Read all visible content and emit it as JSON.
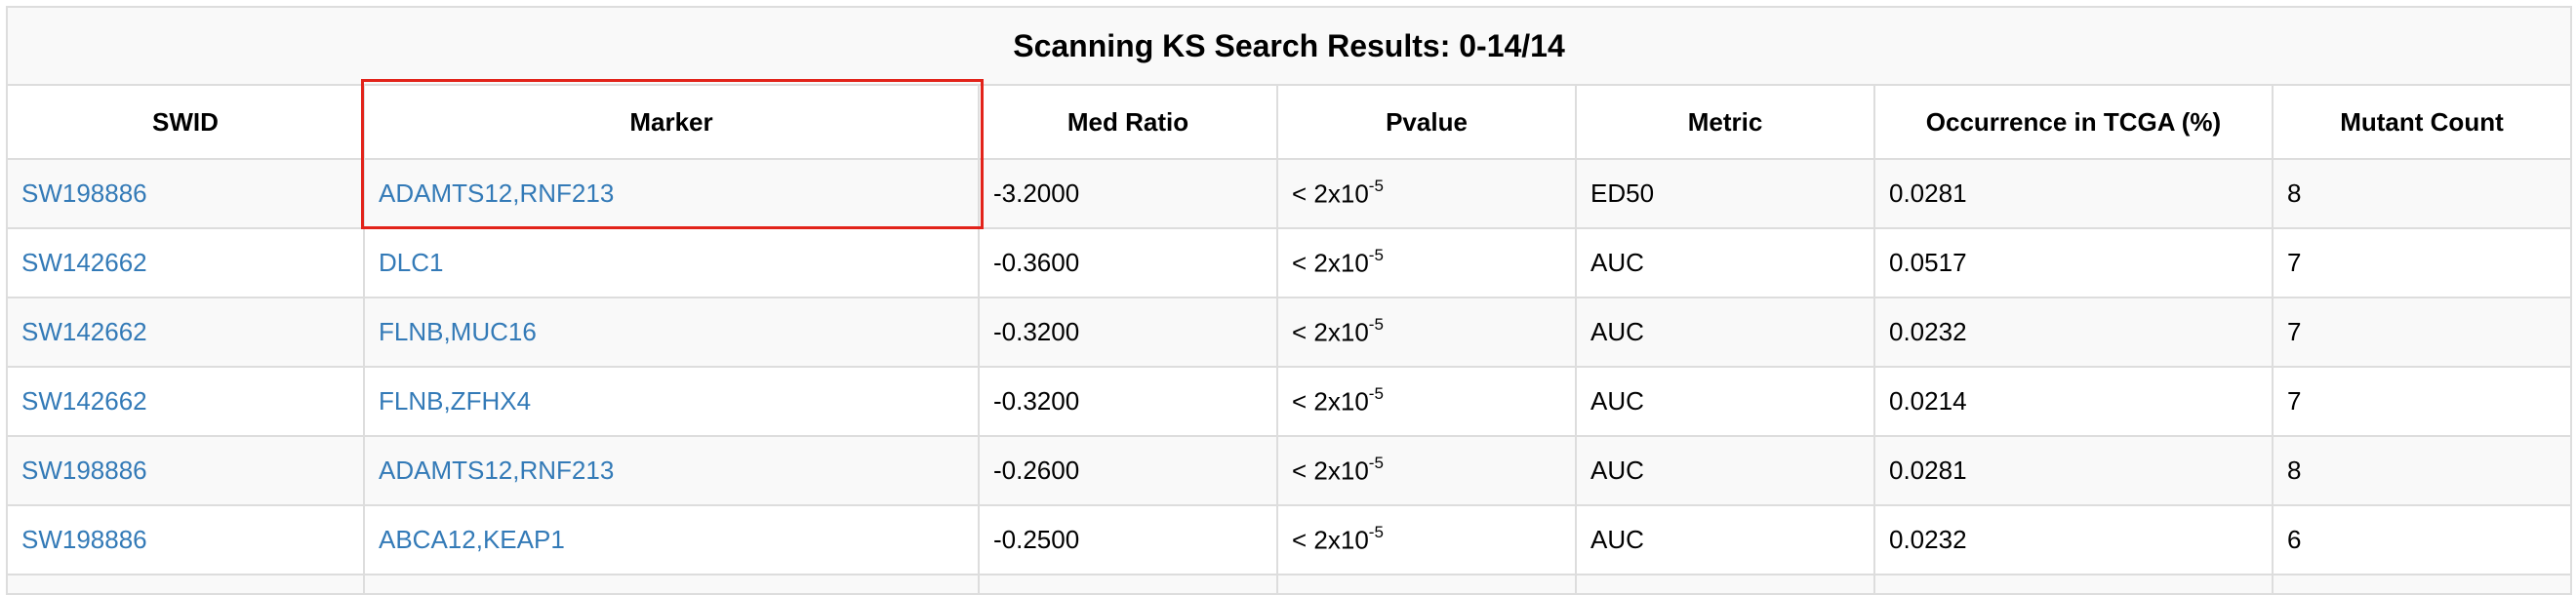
{
  "table": {
    "title": "Scanning KS Search Results: 0-14/14",
    "headers": [
      "SWID",
      "Marker",
      "Med Ratio",
      "Pvalue",
      "Metric",
      "Occurrence in TCGA (%)",
      "Mutant Count"
    ],
    "rows": [
      {
        "swid": "SW198886",
        "marker": "ADAMTS12,RNF213",
        "med_ratio": "-3.2000",
        "pvalue_prefix": "< 2x10",
        "pvalue_exp": "-5",
        "metric": "ED50",
        "occurrence": "0.0281",
        "mutant_count": "8"
      },
      {
        "swid": "SW142662",
        "marker": "DLC1",
        "med_ratio": "-0.3600",
        "pvalue_prefix": "< 2x10",
        "pvalue_exp": "-5",
        "metric": "AUC",
        "occurrence": "0.0517",
        "mutant_count": "7"
      },
      {
        "swid": "SW142662",
        "marker": "FLNB,MUC16",
        "med_ratio": "-0.3200",
        "pvalue_prefix": "< 2x10",
        "pvalue_exp": "-5",
        "metric": "AUC",
        "occurrence": "0.0232",
        "mutant_count": "7"
      },
      {
        "swid": "SW142662",
        "marker": "FLNB,ZFHX4",
        "med_ratio": "-0.3200",
        "pvalue_prefix": "< 2x10",
        "pvalue_exp": "-5",
        "metric": "AUC",
        "occurrence": "0.0214",
        "mutant_count": "7"
      },
      {
        "swid": "SW198886",
        "marker": "ADAMTS12,RNF213",
        "med_ratio": "-0.2600",
        "pvalue_prefix": "< 2x10",
        "pvalue_exp": "-5",
        "metric": "AUC",
        "occurrence": "0.0281",
        "mutant_count": "8"
      },
      {
        "swid": "SW198886",
        "marker": "ABCA12,KEAP1",
        "med_ratio": "-0.2500",
        "pvalue_prefix": "< 2x10",
        "pvalue_exp": "-5",
        "metric": "AUC",
        "occurrence": "0.0232",
        "mutant_count": "6"
      }
    ]
  },
  "colors": {
    "link": "#337ab7",
    "highlight": "#e2231a",
    "border": "#dddddd",
    "stripe": "#f9f9f9"
  }
}
